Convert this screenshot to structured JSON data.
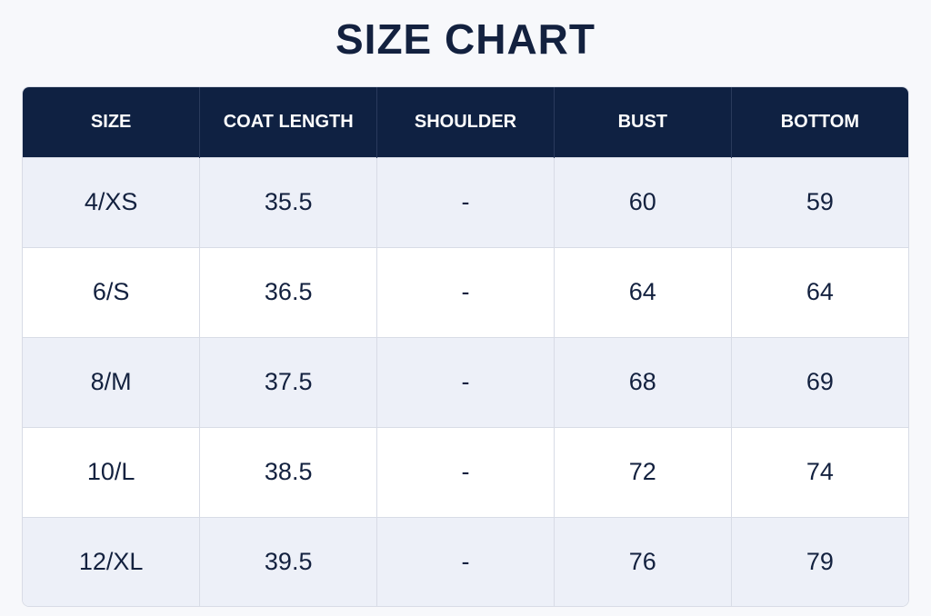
{
  "header": {
    "title": "SIZE CHART"
  },
  "table": {
    "columns": [
      "SIZE",
      "COAT LENGTH",
      "SHOULDER",
      "BUST",
      "BOTTOM"
    ],
    "rows": [
      [
        "4/XS",
        35.5,
        "-",
        60,
        59
      ],
      [
        "6/S",
        36.5,
        "-",
        64,
        64
      ],
      [
        "8/M",
        37.5,
        "-",
        68,
        69
      ],
      [
        "10/L",
        38.5,
        "-",
        72,
        74
      ],
      [
        "12/XL",
        39.5,
        "-",
        76,
        79
      ]
    ]
  }
}
